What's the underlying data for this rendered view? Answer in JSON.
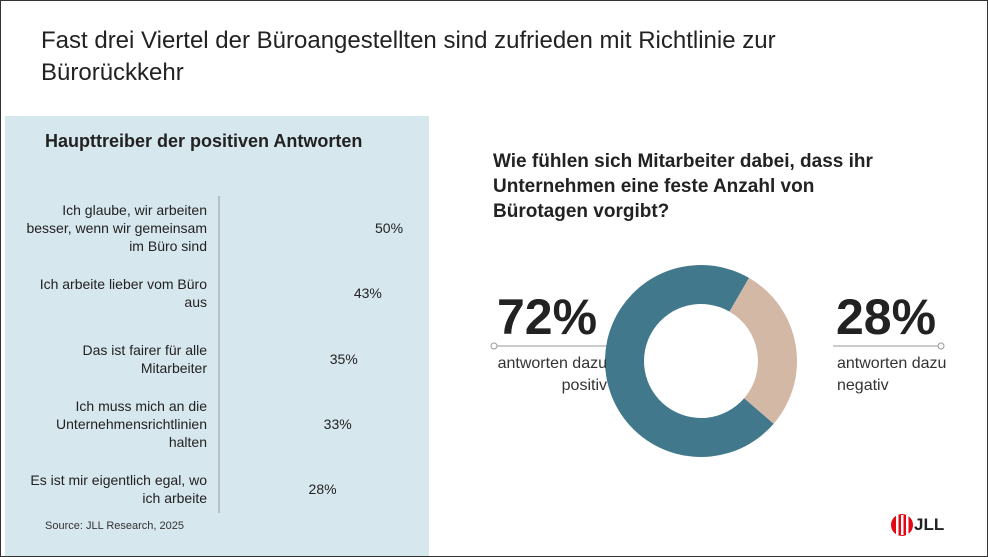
{
  "title": "Fast drei Viertel der Büroangestellten sind zufrieden mit Richtlinie zur Bürorückkehr",
  "source": "Source: JLL Research, 2025",
  "logo": "JLL",
  "chart_data": [
    {
      "type": "bar",
      "orientation": "horizontal",
      "title": "Haupttreiber der positiven Antworten",
      "categories": [
        "Ich glaube, wir arbeiten besser, wenn wir gemeinsam im Büro sind",
        "Ich arbeite lieber vom Büro aus",
        "Das ist fairer für alle Mitarbeiter",
        "Ich muss mich an die Unternehmensrichtlinien halten",
        "Es ist mir eigentlich egal, wo ich arbeite"
      ],
      "values": [
        50,
        43,
        35,
        33,
        28
      ],
      "value_labels": [
        "50%",
        "43%",
        "35%",
        "33%",
        "28%"
      ],
      "color": "#41788c"
    },
    {
      "type": "donut",
      "title": "Wie fühlen sich Mitarbeiter dabei, dass ihr Unternehmen eine feste Anzahl von Bürotagen vorgibt?",
      "categories": [
        "antworten dazu positiv",
        "antworten dazu negativ"
      ],
      "values": [
        72,
        28
      ],
      "value_labels": [
        "72%",
        "28%"
      ],
      "colors": [
        "#41788c",
        "#d3b8a5"
      ]
    }
  ]
}
